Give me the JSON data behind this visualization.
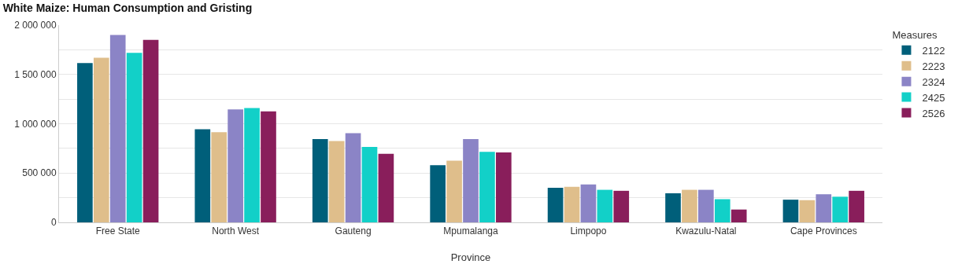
{
  "chart_data": {
    "type": "bar",
    "title": "White Maize: Human Consumption and Gristing",
    "xlabel": "Province",
    "legend_title": "Measures",
    "legend": "top right",
    "grid": "y",
    "categories": [
      "Free State",
      "North West",
      "Gauteng",
      "Mpumalanga",
      "Limpopo",
      "Kwazulu-Natal",
      "Cape Provinces"
    ],
    "series": [
      {
        "name": "2122",
        "color": "#005f7a",
        "values": [
          1615000,
          945000,
          845000,
          580000,
          350000,
          295000,
          230000
        ]
      },
      {
        "name": "2223",
        "color": "#dfbe8b",
        "values": [
          1670000,
          915000,
          825000,
          625000,
          360000,
          330000,
          225000
        ]
      },
      {
        "name": "2324",
        "color": "#8b84c6",
        "values": [
          1900000,
          1145000,
          905000,
          845000,
          385000,
          330000,
          285000
        ]
      },
      {
        "name": "2425",
        "color": "#12d0c8",
        "values": [
          1720000,
          1160000,
          765000,
          715000,
          330000,
          235000,
          260000
        ]
      },
      {
        "name": "2526",
        "color": "#891e5b",
        "values": [
          1850000,
          1125000,
          695000,
          710000,
          320000,
          130000,
          320000
        ]
      }
    ],
    "ylim": [
      0,
      2000000
    ],
    "yticks": [
      {
        "value": 0,
        "label": "0"
      },
      {
        "value": 250000,
        "label": null
      },
      {
        "value": 500000,
        "label": "500 000"
      },
      {
        "value": 750000,
        "label": null
      },
      {
        "value": 1000000,
        "label": "1 000 000"
      },
      {
        "value": 1250000,
        "label": null
      },
      {
        "value": 1500000,
        "label": "1 500 000"
      },
      {
        "value": 1750000,
        "label": null
      },
      {
        "value": 2000000,
        "label": "2 000 000"
      }
    ]
  }
}
